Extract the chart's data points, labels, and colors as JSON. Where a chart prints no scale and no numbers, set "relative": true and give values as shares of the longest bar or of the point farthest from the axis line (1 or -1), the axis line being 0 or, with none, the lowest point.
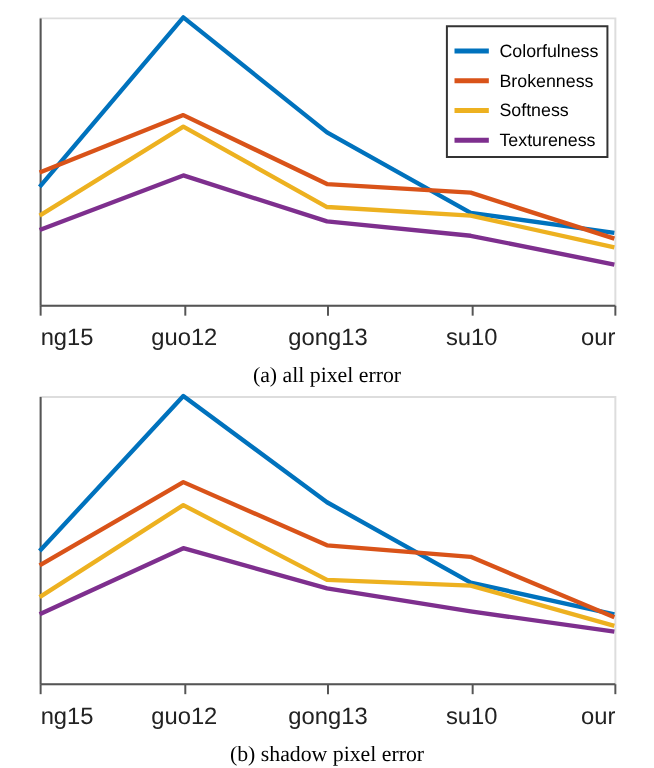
{
  "chart_data": [
    {
      "type": "line",
      "relative": true,
      "title": "(a)  all pixel error",
      "categories": [
        "ng15",
        "guo12",
        "gong13",
        "su10",
        "our"
      ],
      "legend": "top right",
      "grid": false,
      "tick_labels": "x",
      "line_style": "solid",
      "marker": "none",
      "series": [
        {
          "name": "Colorfulness",
          "color": "#0072bd",
          "values": [
            0.41,
            1,
            0.6,
            0.32,
            0.25
          ]
        },
        {
          "name": "Brokenness",
          "color": "#d95319",
          "values": [
            0.46,
            0.66,
            0.42,
            0.39,
            0.23
          ]
        },
        {
          "name": "Softness",
          "color": "#edb120",
          "values": [
            0.31,
            0.62,
            0.34,
            0.31,
            0.2
          ]
        },
        {
          "name": "Textureness",
          "color": "#7e2f8e",
          "values": [
            0.26,
            0.45,
            0.29,
            0.24,
            0.14
          ]
        }
      ]
    },
    {
      "type": "line",
      "relative": true,
      "title": "(b)  shadow pixel error",
      "categories": [
        "ng15",
        "guo12",
        "gong13",
        "su10",
        "our"
      ],
      "legend": "top right",
      "grid": false,
      "tick_labels": "x",
      "line_style": "solid",
      "marker": "none",
      "series": [
        {
          "name": "Colorfulness",
          "color": "#0072bd",
          "values": [
            0.46,
            1,
            0.63,
            0.35,
            0.24
          ]
        },
        {
          "name": "Brokenness",
          "color": "#d95319",
          "values": [
            0.41,
            0.7,
            0.48,
            0.44,
            0.23
          ]
        },
        {
          "name": "Softness",
          "color": "#edb120",
          "values": [
            0.3,
            0.62,
            0.36,
            0.34,
            0.2
          ]
        },
        {
          "name": "Textureness",
          "color": "#7e2f8e",
          "values": [
            0.24,
            0.47,
            0.33,
            0.25,
            0.18
          ]
        }
      ]
    }
  ]
}
